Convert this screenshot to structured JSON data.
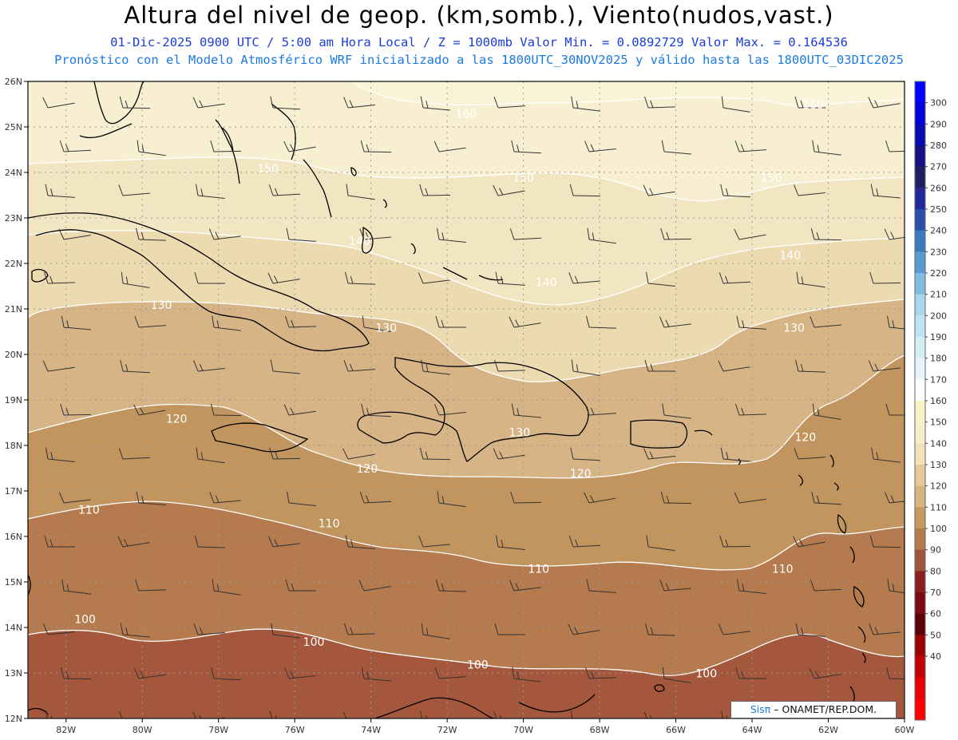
{
  "header": {
    "title": "Altura del nivel de geop. (km,somb.), Viento(nudos,vast.)",
    "subtitle1": "01-Dic-2025  0900 UTC / 5:00 am Hora Local / Z = 1000mb  Valor Min. = 0.0892729  Valor Max. = 0.164536",
    "subtitle2": "Pronóstico con el Modelo Atmosférico WRF inicializado a las 1800UTC_30NOV2025 y válido hasta las  1800UTC_03DIC2025"
  },
  "map": {
    "lon_range": [
      -83,
      -60
    ],
    "lat_range": [
      12,
      26
    ],
    "lon_ticks": [
      "82W",
      "80W",
      "78W",
      "76W",
      "74W",
      "72W",
      "70W",
      "68W",
      "66W",
      "64W",
      "62W",
      "60W"
    ],
    "lat_ticks": [
      "12N",
      "13N",
      "14N",
      "15N",
      "16N",
      "17N",
      "18N",
      "19N",
      "20N",
      "21N",
      "22N",
      "23N",
      "24N",
      "25N",
      "26N"
    ],
    "contour_labels": [
      {
        "text": "160",
        "lon": -71.5,
        "lat": 25.2
      },
      {
        "text": "160",
        "lon": -62.4,
        "lat": 25.4
      },
      {
        "text": "150",
        "lon": -76.7,
        "lat": 24.0
      },
      {
        "text": "150",
        "lon": -70.0,
        "lat": 23.8
      },
      {
        "text": "150",
        "lon": -63.5,
        "lat": 23.8
      },
      {
        "text": "140",
        "lon": -74.3,
        "lat": 22.4
      },
      {
        "text": "140",
        "lon": -69.4,
        "lat": 21.5
      },
      {
        "text": "140",
        "lon": -63.0,
        "lat": 22.1
      },
      {
        "text": "130",
        "lon": -79.5,
        "lat": 21.0
      },
      {
        "text": "130",
        "lon": -73.6,
        "lat": 20.5
      },
      {
        "text": "130",
        "lon": -70.1,
        "lat": 18.2
      },
      {
        "text": "130",
        "lon": -62.9,
        "lat": 20.5
      },
      {
        "text": "120",
        "lon": -79.1,
        "lat": 18.5
      },
      {
        "text": "120",
        "lon": -74.1,
        "lat": 17.4
      },
      {
        "text": "120",
        "lon": -68.5,
        "lat": 17.3
      },
      {
        "text": "120",
        "lon": -62.6,
        "lat": 18.1
      },
      {
        "text": "110",
        "lon": -81.4,
        "lat": 16.5
      },
      {
        "text": "110",
        "lon": -75.1,
        "lat": 16.2
      },
      {
        "text": "110",
        "lon": -69.6,
        "lat": 15.2
      },
      {
        "text": "110",
        "lon": -63.2,
        "lat": 15.2
      },
      {
        "text": "100",
        "lon": -81.5,
        "lat": 14.1
      },
      {
        "text": "100",
        "lon": -75.5,
        "lat": 13.6
      },
      {
        "text": "100",
        "lon": -71.2,
        "lat": 13.1
      },
      {
        "text": "100",
        "lon": -65.2,
        "lat": 12.9
      }
    ]
  },
  "colorbar": {
    "labels": [
      "300",
      "290",
      "280",
      "270",
      "260",
      "250",
      "240",
      "230",
      "220",
      "210",
      "200",
      "190",
      "180",
      "170",
      "160",
      "150",
      "140",
      "130",
      "120",
      "110",
      "100",
      "90",
      "80",
      "70",
      "60",
      "50",
      "40"
    ],
    "colors": [
      "#0000ff",
      "#0000dd",
      "#0a0ab0",
      "#121280",
      "#1e1e60",
      "#22289a",
      "#2c50a8",
      "#3c7ac0",
      "#5a9ad0",
      "#80bde0",
      "#a8d8ec",
      "#bfe4f2",
      "#d5eef6",
      "#e6f5f9",
      "#ffffff",
      "#fbf2c8",
      "#f8eecd",
      "#f2e2b8",
      "#e6ca9a",
      "#d8b480",
      "#c5985d",
      "#b47c4c",
      "#a0553a",
      "#8a1e20",
      "#7a0a14",
      "#5c000a",
      "#9a0000",
      "#c00000",
      "#e80000",
      "#ff0000"
    ]
  },
  "credit": {
    "brand": "Sisπ",
    "text": " – ONAMET/REP.DOM."
  }
}
